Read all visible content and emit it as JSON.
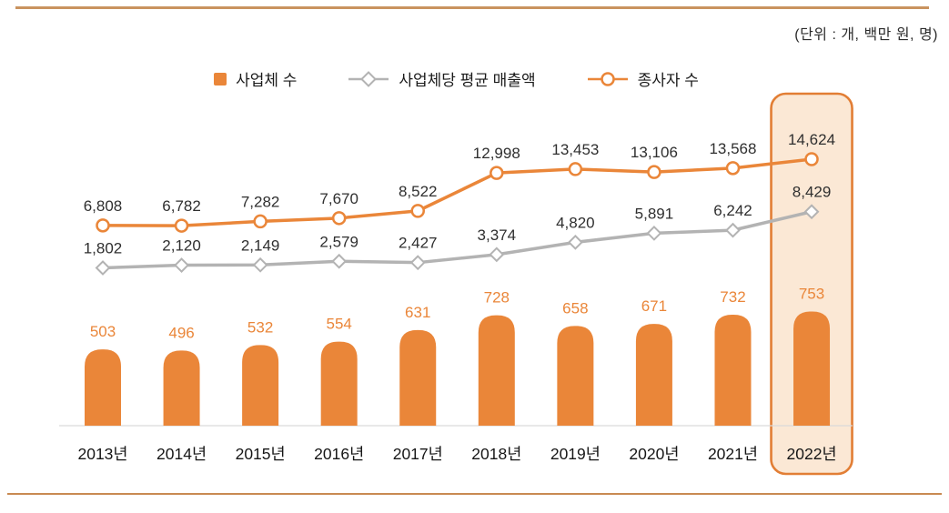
{
  "chart_data": {
    "type": "combo",
    "title": "",
    "unit_note": "(단위 : 개, 백만 원, 명)",
    "categories": [
      "2013년",
      "2014년",
      "2015년",
      "2016년",
      "2017년",
      "2018년",
      "2019년",
      "2020년",
      "2021년",
      "2022년"
    ],
    "series": [
      {
        "name": "사업체 수",
        "type": "bar",
        "marker": "square",
        "color": "#EA8639",
        "values": [
          503,
          496,
          532,
          554,
          631,
          728,
          658,
          671,
          732,
          753
        ]
      },
      {
        "name": "사업체당 평균 매출액",
        "type": "line",
        "marker": "diamond",
        "color": "#B3B3B3",
        "values": [
          1802,
          2120,
          2149,
          2579,
          2427,
          3374,
          4820,
          5891,
          6242,
          8429
        ]
      },
      {
        "name": "종사자 수",
        "type": "line",
        "marker": "circle",
        "color": "#EA8639",
        "values": [
          6808,
          6782,
          7282,
          7670,
          8522,
          12998,
          13453,
          13106,
          13568,
          14624
        ]
      }
    ],
    "highlight": {
      "category": "2022년",
      "fill": "#FBE8D5",
      "border": "#E27E35"
    },
    "legend_position": "top",
    "grid": false,
    "line_label_color": "#2f2f2f",
    "x_label_color": "#161616",
    "axis_line_color": "#D9D9D9"
  },
  "decor": {
    "divider_top_color": "#C9935F",
    "divider_bottom_color": "#C98A52"
  }
}
